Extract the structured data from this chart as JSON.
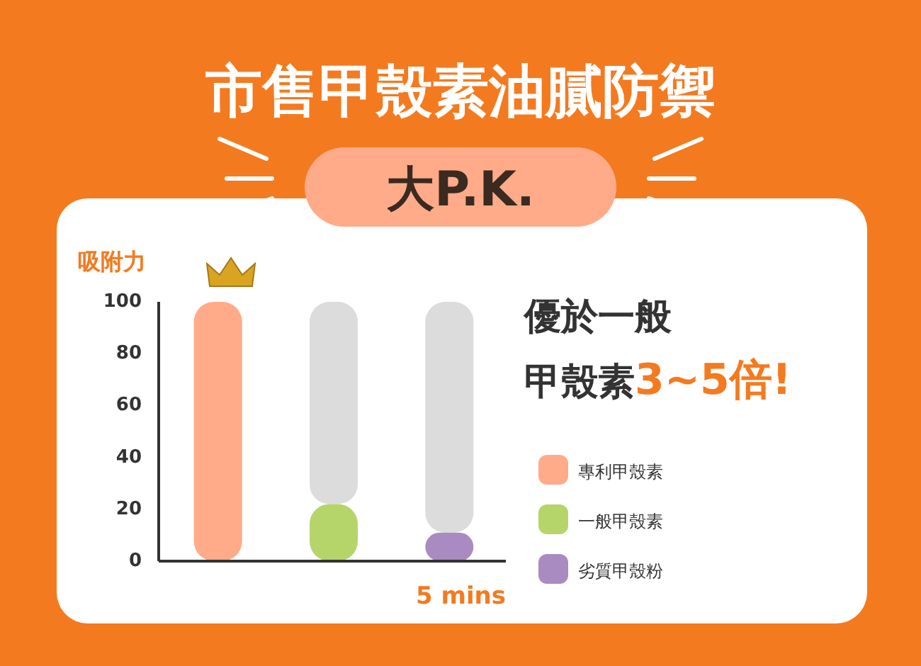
{
  "chart_data": {
    "type": "bar",
    "title": "市售甲殼素油膩防禦",
    "subtitle": "大P.K.",
    "ylabel": "吸附力",
    "xlabel": "5 mins",
    "categories": [
      null,
      null,
      null
    ],
    "stacked": true,
    "series": [
      {
        "name": "專利甲殼素",
        "color": "#ffab8a",
        "values": [
          100,
          null,
          null
        ]
      },
      {
        "name": "一般甲殼素",
        "color": "#b5d56a",
        "values": [
          null,
          22,
          null
        ]
      },
      {
        "name": "劣質甲殼粉",
        "color": "#a98bc2",
        "values": [
          null,
          null,
          11
        ]
      },
      {
        "color": "#dcdcdc",
        "values": [
          null,
          78,
          89
        ]
      }
    ],
    "ylim": [
      0,
      100
    ],
    "yticks": [
      0,
      20,
      40,
      60,
      80,
      100
    ],
    "legend": "right",
    "annotations": [
      "優於一般",
      "甲殼素",
      "3~5倍!"
    ]
  }
}
